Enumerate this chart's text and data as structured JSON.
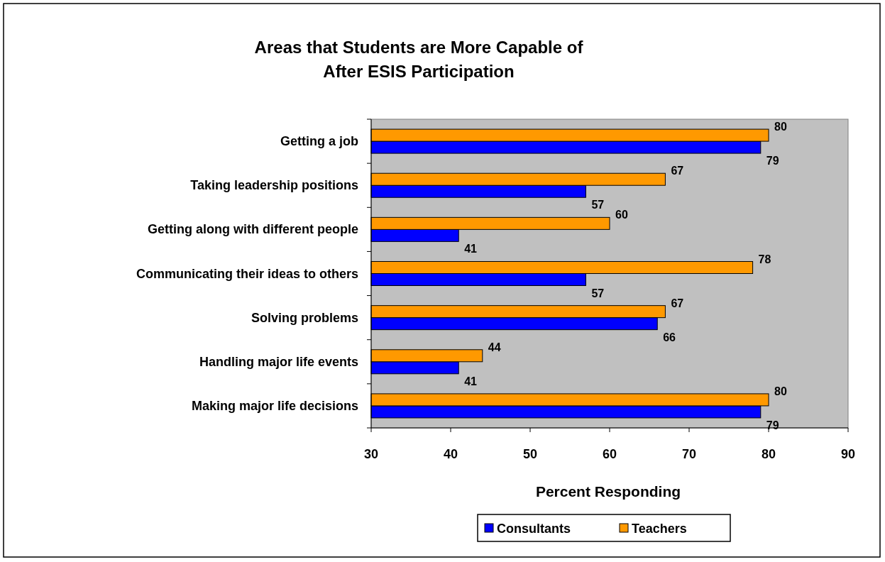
{
  "chart_data": {
    "type": "bar",
    "orientation": "horizontal",
    "title": "Areas that Students are More Capable of\nAfter ESIS Participation",
    "xlabel": "Percent Responding",
    "categories": [
      "Getting a job",
      "Taking leadership positions",
      "Getting along with different people",
      "Communicating their ideas to others",
      "Solving problems",
      "Handling major life events",
      "Making major life decisions"
    ],
    "series": [
      {
        "name": "Consultants",
        "color": "#0000ff",
        "values": [
          79,
          57,
          41,
          57,
          66,
          41,
          79
        ]
      },
      {
        "name": "Teachers",
        "color": "#ff9900",
        "values": [
          80,
          67,
          60,
          78,
          67,
          44,
          80
        ]
      }
    ],
    "xlim": [
      30,
      90
    ],
    "xticks": [
      30,
      40,
      50,
      60,
      70,
      80,
      90
    ],
    "data_labels": true,
    "legend": "bottom",
    "grid": false
  }
}
